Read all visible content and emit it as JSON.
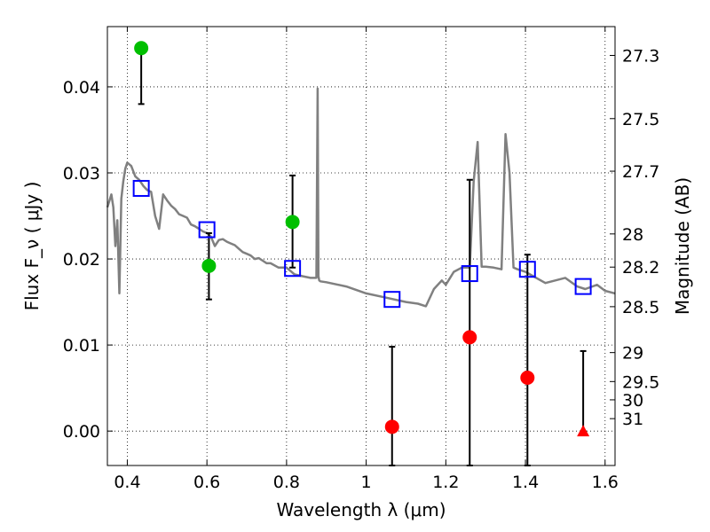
{
  "chart_data": {
    "type": "scatter",
    "xlabel": "Wavelength  λ (μm)",
    "ylabel": "Flux  F_ν  ( μJy )",
    "ylabel_right": "Magnitude (AB)",
    "xlim": [
      0.35,
      1.625
    ],
    "ylim": [
      -0.004,
      0.047
    ],
    "grid": true,
    "x_ticks": [
      0.4,
      0.6,
      0.8,
      1.0,
      1.2,
      1.4,
      1.6
    ],
    "x_tick_labels": [
      "0.4",
      "0.6",
      "0.8",
      "1",
      "1.2",
      "1.4",
      "1.6"
    ],
    "y_ticks": [
      0.0,
      0.01,
      0.02,
      0.03,
      0.04
    ],
    "y_tick_labels": [
      "0.00",
      "0.01",
      "0.02",
      "0.03",
      "0.04"
    ],
    "mag_ticks": [
      "27.3",
      "27.5",
      "27.7",
      "28",
      "28.2",
      "28.5",
      "29",
      "29.5",
      "30",
      "31"
    ],
    "model_sed": {
      "color": "#808080",
      "x": [
        0.35,
        0.36,
        0.365,
        0.37,
        0.375,
        0.38,
        0.385,
        0.39,
        0.395,
        0.4,
        0.41,
        0.42,
        0.43,
        0.44,
        0.45,
        0.46,
        0.47,
        0.48,
        0.49,
        0.5,
        0.51,
        0.52,
        0.53,
        0.54,
        0.55,
        0.56,
        0.57,
        0.58,
        0.59,
        0.6,
        0.61,
        0.62,
        0.63,
        0.64,
        0.65,
        0.66,
        0.67,
        0.68,
        0.69,
        0.7,
        0.71,
        0.72,
        0.73,
        0.74,
        0.75,
        0.76,
        0.78,
        0.8,
        0.82,
        0.84,
        0.86,
        0.875,
        0.878,
        0.88,
        0.882,
        0.885,
        0.9,
        0.95,
        1.0,
        1.05,
        1.1,
        1.13,
        1.15,
        1.17,
        1.19,
        1.2,
        1.22,
        1.24,
        1.26,
        1.27,
        1.28,
        1.29,
        1.3,
        1.32,
        1.34,
        1.35,
        1.36,
        1.37,
        1.38,
        1.4,
        1.45,
        1.5,
        1.53,
        1.55,
        1.58,
        1.6,
        1.625
      ],
      "y": [
        0.026,
        0.0275,
        0.026,
        0.0215,
        0.0245,
        0.016,
        0.027,
        0.029,
        0.0305,
        0.0312,
        0.0308,
        0.0296,
        0.0292,
        0.0285,
        0.028,
        0.0278,
        0.025,
        0.0235,
        0.0275,
        0.0268,
        0.0262,
        0.0258,
        0.0252,
        0.025,
        0.0248,
        0.024,
        0.0238,
        0.0235,
        0.0232,
        0.023,
        0.0226,
        0.0215,
        0.0222,
        0.0223,
        0.022,
        0.0218,
        0.0216,
        0.0212,
        0.0208,
        0.0206,
        0.0204,
        0.02,
        0.0201,
        0.0198,
        0.0195,
        0.0195,
        0.019,
        0.019,
        0.0182,
        0.018,
        0.0178,
        0.0178,
        0.0398,
        0.018,
        0.0175,
        0.0174,
        0.0173,
        0.0168,
        0.016,
        0.0155,
        0.015,
        0.0148,
        0.0145,
        0.0165,
        0.0175,
        0.017,
        0.0185,
        0.019,
        0.019,
        0.029,
        0.0336,
        0.0191,
        0.0191,
        0.019,
        0.0188,
        0.0345,
        0.03,
        0.019,
        0.0188,
        0.0185,
        0.0172,
        0.0178,
        0.0168,
        0.0165,
        0.017,
        0.0163,
        0.016
      ]
    },
    "series": [
      {
        "marker": "circle",
        "color": "#00bf00",
        "points": [
          {
            "x": 0.435,
            "y": 0.0445,
            "err_lo": 0.038,
            "err_hi": null
          },
          {
            "x": 0.605,
            "y": 0.0192,
            "err_lo": 0.0153,
            "err_hi": 0.023
          },
          {
            "x": 0.815,
            "y": 0.0243,
            "err_lo": 0.019,
            "err_hi": 0.0297
          }
        ]
      },
      {
        "marker": "circle",
        "color": "#ff0000",
        "points": [
          {
            "x": 1.065,
            "y": 0.0005,
            "err_lo": -0.004,
            "err_hi": 0.0098
          },
          {
            "x": 1.26,
            "y": 0.0109,
            "err_lo": -0.004,
            "err_hi": 0.0292
          },
          {
            "x": 1.405,
            "y": 0.0062,
            "err_lo": -0.004,
            "err_hi": 0.0205
          }
        ]
      },
      {
        "marker": "triangle",
        "color": "#ff0000",
        "points": [
          {
            "x": 1.545,
            "y": 0.0,
            "err_lo": 0.0,
            "err_hi": 0.0093
          }
        ]
      },
      {
        "marker": "square-open",
        "color": "#0000ff",
        "points": [
          {
            "x": 0.435,
            "y": 0.0282
          },
          {
            "x": 0.6,
            "y": 0.0234
          },
          {
            "x": 0.815,
            "y": 0.0189
          },
          {
            "x": 1.065,
            "y": 0.0153
          },
          {
            "x": 1.26,
            "y": 0.0183
          },
          {
            "x": 1.405,
            "y": 0.0188
          },
          {
            "x": 1.545,
            "y": 0.0168
          }
        ]
      }
    ]
  }
}
